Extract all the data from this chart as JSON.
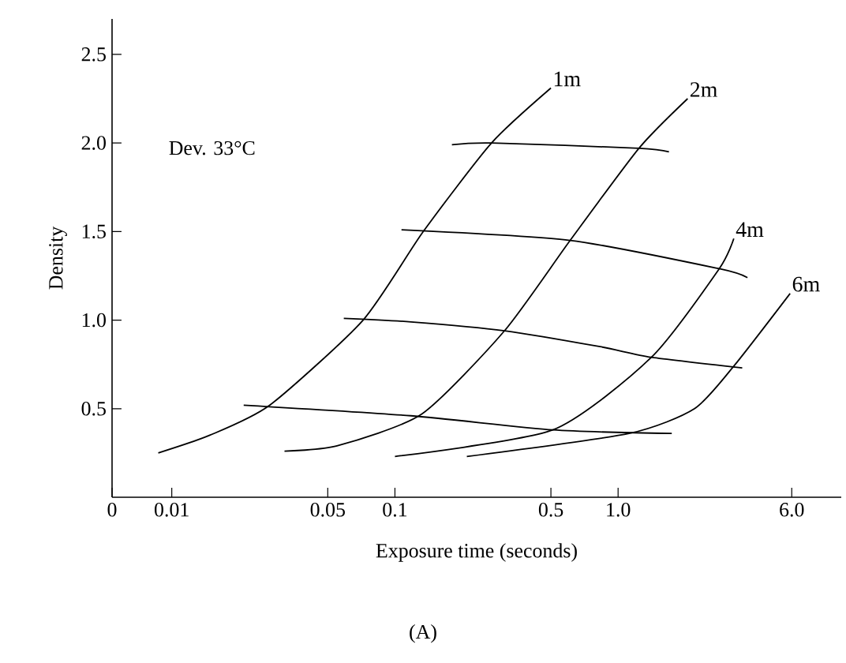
{
  "chart_data": {
    "type": "line",
    "log": "x",
    "xlabel": "Exposure time (seconds)",
    "ylabel": "Density",
    "annotations": [
      "Dev. 33°C",
      "(A)"
    ],
    "xlim": [
      0.0054,
      10
    ],
    "ylim": [
      0,
      2.7
    ],
    "xticks": [
      {
        "value": 0.0054,
        "label": "0"
      },
      0.01,
      0.05,
      0.1,
      0.5,
      {
        "value": 1,
        "label": "1.0"
      },
      {
        "value": 6,
        "label": "6.0"
      }
    ],
    "yticks": [
      0.5,
      {
        "value": 1,
        "label": "1.0"
      },
      1.5,
      {
        "value": 2,
        "label": "2.0"
      },
      2.5
    ],
    "marker": "none",
    "line_style": "solid",
    "series": [
      {
        "name": "1m",
        "color": "#000000",
        "x": [
          0.0087,
          0.0148,
          0.0275,
          0.072,
          0.134,
          0.271,
          0.5
        ],
        "values": [
          0.25,
          0.35,
          0.52,
          1.0,
          1.5,
          2.0,
          2.31
        ]
      },
      {
        "name": "2m",
        "color": "#000000",
        "x": [
          0.032,
          0.055,
          0.132,
          0.31,
          0.61,
          1.24,
          2.05
        ],
        "values": [
          0.26,
          0.29,
          0.47,
          0.94,
          1.45,
          1.97,
          2.25
        ]
      },
      {
        "name": "4m",
        "color": "#000000",
        "x": [
          0.1,
          0.51,
          1.41,
          2.84,
          3.3
        ],
        "values": [
          0.23,
          0.38,
          0.79,
          1.29,
          1.46
        ]
      },
      {
        "name": "6m",
        "color": "#000000",
        "x": [
          0.21,
          1.12,
          2.2,
          3.3,
          5.9
        ],
        "values": [
          0.23,
          0.36,
          0.5,
          0.74,
          1.15
        ]
      },
      {
        "color": "#000000",
        "x": [
          0.021,
          0.118,
          0.51,
          1.74
        ],
        "values": [
          0.52,
          0.46,
          0.38,
          0.36
        ]
      },
      {
        "color": "#000000",
        "x": [
          0.059,
          0.118,
          0.31,
          0.83,
          1.41,
          3.6
        ],
        "values": [
          1.01,
          0.99,
          0.94,
          0.85,
          0.79,
          0.73
        ]
      },
      {
        "color": "#000000",
        "x": [
          0.107,
          0.61,
          2.84,
          3.8
        ],
        "values": [
          1.51,
          1.45,
          1.29,
          1.24
        ]
      },
      {
        "color": "#000000",
        "x": [
          0.18,
          0.271,
          1.24,
          1.69
        ],
        "values": [
          1.99,
          2.0,
          1.97,
          1.95
        ]
      }
    ]
  }
}
